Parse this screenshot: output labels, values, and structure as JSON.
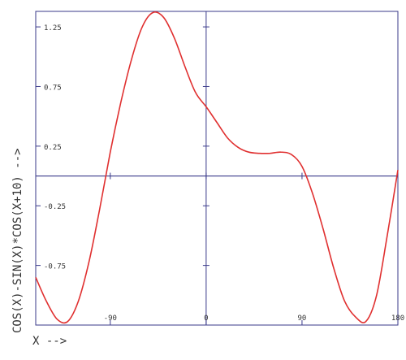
{
  "chart_data": {
    "type": "line",
    "title": "",
    "xlabel": "X -->",
    "ylabel": "COS(X)-SIN(X)*COS(X+10)  -->",
    "xlim": [
      -160,
      180
    ],
    "ylim": [
      -1.25,
      1.38
    ],
    "grid": false,
    "y_ticks": [
      -0.75,
      -0.25,
      0.25,
      0.75,
      1.25
    ],
    "y_tick_labels": [
      "-0.75",
      "-0.25",
      "0.25",
      "0.75",
      "1.25"
    ],
    "x_ticks": [
      -90,
      0,
      90,
      180
    ],
    "x_tick_labels": [
      "-90",
      "0",
      "90",
      "180"
    ],
    "colors": {
      "axes": "#3a3a8a",
      "curve": "#e03030",
      "text": "#333333"
    },
    "series": [
      {
        "x": [
          -160,
          -150,
          -140,
          -130,
          -120,
          -110,
          -100,
          -90,
          -80,
          -70,
          -60,
          -50,
          -40,
          -30,
          -20,
          -10,
          0,
          10,
          20,
          30,
          40,
          50,
          60,
          70,
          80,
          90,
          100,
          110,
          120,
          130,
          140,
          150,
          160,
          170,
          180
        ],
        "values": [
          -0.85,
          -1.05,
          -1.2,
          -1.22,
          -1.05,
          -0.72,
          -0.28,
          0.2,
          0.62,
          0.98,
          1.25,
          1.37,
          1.33,
          1.16,
          0.92,
          0.7,
          0.58,
          0.45,
          0.32,
          0.24,
          0.2,
          0.19,
          0.19,
          0.2,
          0.18,
          0.08,
          -0.15,
          -0.45,
          -0.78,
          -1.05,
          -1.18,
          -1.22,
          -1.0,
          -0.5,
          0.05
        ]
      }
    ]
  }
}
